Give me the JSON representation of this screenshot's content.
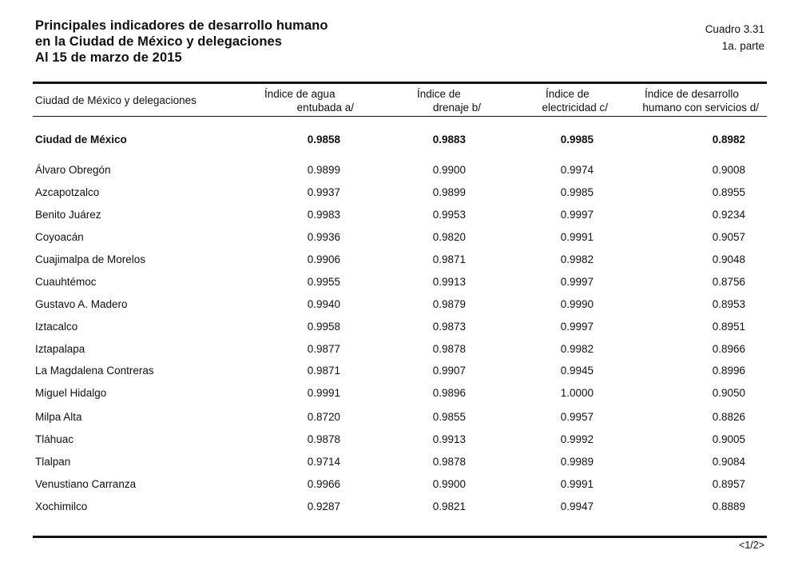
{
  "title": {
    "line1": "Principales indicadores de desarrollo humano",
    "line2": "en la Ciudad de México y delegaciones",
    "line3": "Al 15 de marzo de 2015"
  },
  "table_number": "Cuadro 3.31",
  "part": "1a. parte",
  "headers": {
    "name": "Ciudad de México y delegaciones",
    "water": {
      "line1": "Índice de agua",
      "line2": "entubada a/"
    },
    "drainage": {
      "line1": "Índice de",
      "line2": "drenaje b/"
    },
    "electricity": {
      "line1": "Índice de",
      "line2": "electricidad c/"
    },
    "hdi": {
      "line1": "Índice de desarrollo",
      "line2": "humano con servicios d/"
    }
  },
  "total_row": {
    "name": "Ciudad de México",
    "water": "0.9858",
    "drainage": "0.9883",
    "electricity": "0.9985",
    "hdi": "0.8982"
  },
  "rows": [
    {
      "name": "Álvaro Obregón",
      "water": "0.9899",
      "drainage": "0.9900",
      "electricity": "0.9974",
      "hdi": "0.9008"
    },
    {
      "name": "Azcapotzalco",
      "water": "0.9937",
      "drainage": "0.9899",
      "electricity": "0.9985",
      "hdi": "0.8955"
    },
    {
      "name": "Benito Juárez",
      "water": "0.9983",
      "drainage": "0.9953",
      "electricity": "0.9997",
      "hdi": "0.9234"
    },
    {
      "name": "Coyoacán",
      "water": "0.9936",
      "drainage": "0.9820",
      "electricity": "0.9991",
      "hdi": "0.9057"
    },
    {
      "name": "Cuajimalpa de Morelos",
      "water": "0.9906",
      "drainage": "0.9871",
      "electricity": "0.9982",
      "hdi": "0.9048"
    },
    {
      "name": "Cuauhtémoc",
      "water": "0.9955",
      "drainage": "0.9913",
      "electricity": "0.9997",
      "hdi": "0.8756"
    },
    {
      "name": "Gustavo A. Madero",
      "water": "0.9940",
      "drainage": "0.9879",
      "electricity": "0.9990",
      "hdi": "0.8953"
    },
    {
      "name": "Iztacalco",
      "water": "0.9958",
      "drainage": "0.9873",
      "electricity": "0.9997",
      "hdi": "0.8951"
    },
    {
      "name": "Iztapalapa",
      "water": "0.9877",
      "drainage": "0.9878",
      "electricity": "0.9982",
      "hdi": "0.8966"
    },
    {
      "name": "La Magdalena Contreras",
      "water": "0.9871",
      "drainage": "0.9907",
      "electricity": "0.9945",
      "hdi": "0.8996"
    },
    {
      "name": "Miguel Hidalgo",
      "water": "0.9991",
      "drainage": "0.9896",
      "electricity": "1.0000",
      "hdi": "0.9050"
    },
    {
      "name": "Milpa Alta",
      "water": "0.8720",
      "drainage": "0.9855",
      "electricity": "0.9957",
      "hdi": "0.8826"
    },
    {
      "name": "Tláhuac",
      "water": "0.9878",
      "drainage": "0.9913",
      "electricity": "0.9992",
      "hdi": "0.9005"
    },
    {
      "name": "Tlalpan",
      "water": "0.9714",
      "drainage": "0.9878",
      "electricity": "0.9989",
      "hdi": "0.9084"
    },
    {
      "name": "Venustiano Carranza",
      "water": "0.9966",
      "drainage": "0.9900",
      "electricity": "0.9991",
      "hdi": "0.8957"
    },
    {
      "name": "Xochimilco",
      "water": "0.9287",
      "drainage": "0.9821",
      "electricity": "0.9947",
      "hdi": "0.8889"
    }
  ],
  "page_marker": "<1/2>"
}
